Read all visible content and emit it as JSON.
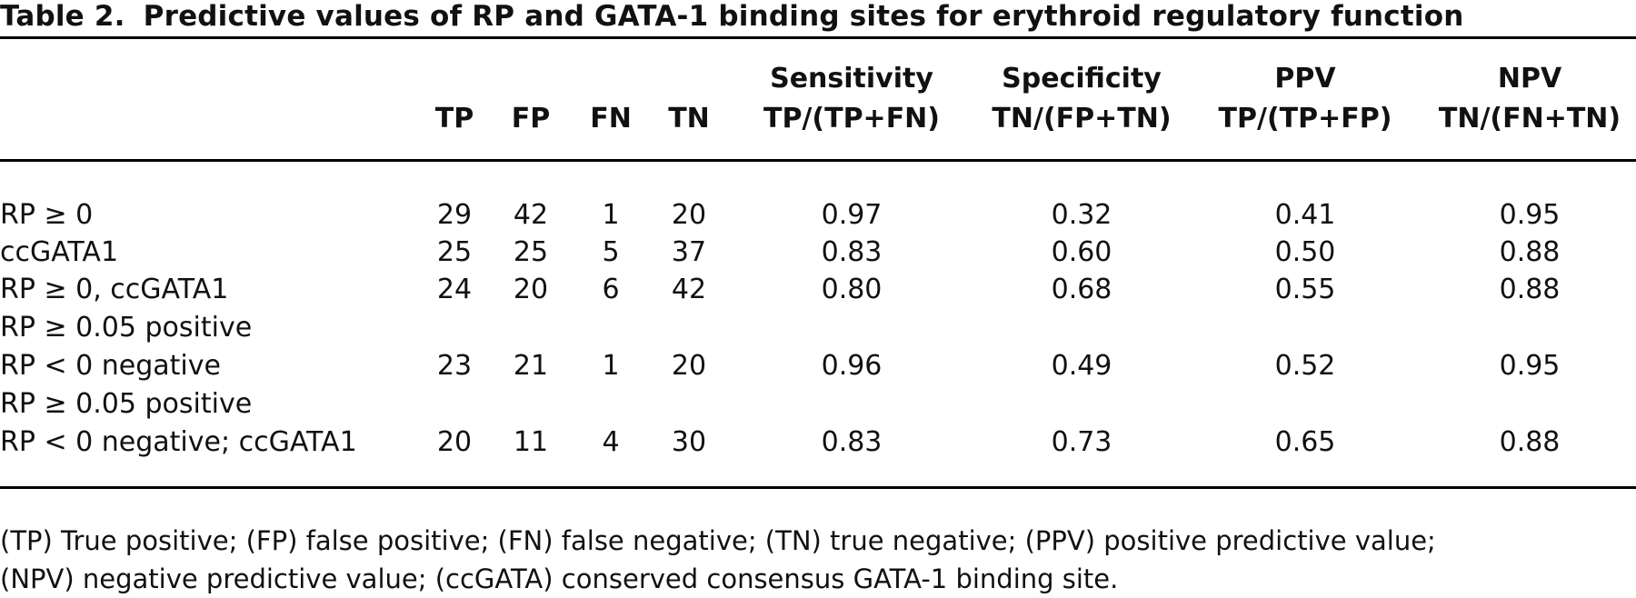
{
  "table": {
    "label": "Table 2.",
    "title": "Predictive values of RP and GATA-1 binding sites for erythroid regulatory function",
    "headers": {
      "tp": "TP",
      "fp": "FP",
      "fn": "FN",
      "tn": "TN",
      "sensitivity": [
        "Sensitivity",
        "TP/(TP+FN)"
      ],
      "specificity": [
        "Specificity",
        "TN/(FP+TN)"
      ],
      "ppv": [
        "PPV",
        "TP/(TP+FP)"
      ],
      "npv": [
        "NPV",
        "TN/(FN+TN)"
      ]
    },
    "rows": [
      {
        "label": [
          "RP ≥ 0"
        ],
        "tp": "29",
        "fp": "42",
        "fn": "1",
        "tn": "20",
        "sensitivity": "0.97",
        "specificity": "0.32",
        "ppv": "0.41",
        "npv": "0.95"
      },
      {
        "label": [
          "ccGATA1"
        ],
        "tp": "25",
        "fp": "25",
        "fn": "5",
        "tn": "37",
        "sensitivity": "0.83",
        "specificity": "0.60",
        "ppv": "0.50",
        "npv": "0.88"
      },
      {
        "label": [
          "RP ≥ 0, ccGATA1"
        ],
        "tp": "24",
        "fp": "20",
        "fn": "6",
        "tn": "42",
        "sensitivity": "0.80",
        "specificity": "0.68",
        "ppv": "0.55",
        "npv": "0.88"
      },
      {
        "label": [
          "RP ≥ 0.05 positive",
          "RP < 0 negative"
        ],
        "tp": "23",
        "fp": "21",
        "fn": "1",
        "tn": "20",
        "sensitivity": "0.96",
        "specificity": "0.49",
        "ppv": "0.52",
        "npv": "0.95"
      },
      {
        "label": [
          "RP ≥ 0.05 positive",
          "RP < 0 negative; ccGATA1"
        ],
        "tp": "20",
        "fp": "11",
        "fn": "4",
        "tn": "30",
        "sensitivity": "0.83",
        "specificity": "0.73",
        "ppv": "0.65",
        "npv": "0.88"
      }
    ],
    "footnote": [
      "(TP) True positive; (FP) false positive; (FN) false negative; (TN) true negative; (PPV) positive predictive value;",
      "(NPV) negative predictive value; (ccGATA) conserved consensus GATA-1 binding site."
    ]
  }
}
